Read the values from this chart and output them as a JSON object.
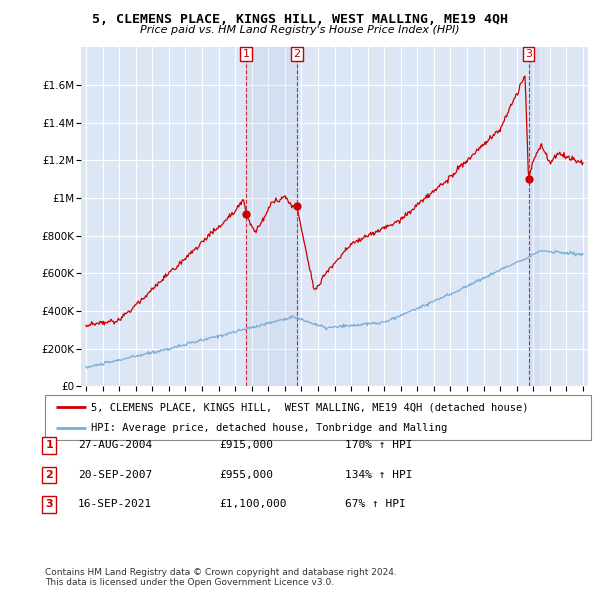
{
  "title": "5, CLEMENS PLACE, KINGS HILL, WEST MALLING, ME19 4QH",
  "subtitle": "Price paid vs. HM Land Registry's House Price Index (HPI)",
  "ylim": [
    0,
    1800000
  ],
  "yticks": [
    0,
    200000,
    400000,
    600000,
    800000,
    1000000,
    1200000,
    1400000,
    1600000
  ],
  "ytick_labels": [
    "£0",
    "£200K",
    "£400K",
    "£600K",
    "£800K",
    "£1M",
    "£1.2M",
    "£1.4M",
    "£1.6M"
  ],
  "x_start_year": 1995,
  "x_end_year": 2025,
  "background_color": "#ffffff",
  "plot_bg_color": "#dce6f5",
  "grid_color": "#ffffff",
  "red_line_color": "#cc0000",
  "blue_line_color": "#7aadd4",
  "purchase_year_nums": [
    2004.66,
    2007.72,
    2021.71
  ],
  "purchase_prices": [
    915000,
    955000,
    1100000
  ],
  "purchase_labels": [
    "1",
    "2",
    "3"
  ],
  "legend_label_red": "5, CLEMENS PLACE, KINGS HILL,  WEST MALLING, ME19 4QH (detached house)",
  "legend_label_blue": "HPI: Average price, detached house, Tonbridge and Malling",
  "ann_labels": [
    "1",
    "2",
    "3"
  ],
  "ann_dates": [
    "27-AUG-2004",
    "20-SEP-2007",
    "16-SEP-2021"
  ],
  "ann_prices": [
    "£915,000",
    "£955,000",
    "£1,100,000"
  ],
  "ann_pcts": [
    "170% ↑ HPI",
    "134% ↑ HPI",
    "67% ↑ HPI"
  ],
  "footnote": "Contains HM Land Registry data © Crown copyright and database right 2024.\nThis data is licensed under the Open Government Licence v3.0."
}
